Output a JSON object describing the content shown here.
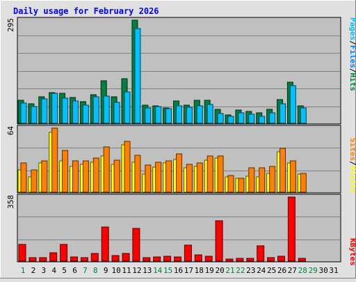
{
  "chart_data": [
    {
      "type": "bar",
      "title": "Daily usage for February 2026",
      "categories": [
        "1",
        "2",
        "3",
        "4",
        "5",
        "6",
        "7",
        "8",
        "9",
        "10",
        "11",
        "12",
        "13",
        "14",
        "15",
        "16",
        "17",
        "18",
        "19",
        "20",
        "21",
        "22",
        "23",
        "24",
        "25",
        "26",
        "27",
        "28",
        "29",
        "30",
        "31"
      ],
      "weekend_days": [
        "1",
        "7",
        "8",
        "14",
        "15",
        "21",
        "22",
        "28",
        "29"
      ],
      "ylabel_parts": [
        "Pages",
        "Files",
        "Hits"
      ],
      "ymax_label": "295",
      "ylim": [
        0,
        295
      ],
      "series": [
        {
          "name": "Hits",
          "color": "#008040",
          "values": [
            65,
            56,
            75,
            87,
            85,
            73,
            61,
            82,
            121,
            76,
            128,
            295,
            51,
            50,
            44,
            63,
            52,
            66,
            65,
            39,
            24,
            37,
            33,
            29,
            40,
            68,
            118,
            49,
            0,
            0,
            0
          ]
        },
        {
          "name": "Files",
          "color": "#00c0ff",
          "values": [
            57,
            47,
            70,
            85,
            72,
            63,
            51,
            76,
            78,
            60,
            90,
            272,
            43,
            47,
            41,
            50,
            45,
            50,
            54,
            27,
            19,
            30,
            26,
            20,
            30,
            55,
            107,
            43,
            0,
            0,
            0
          ]
        },
        {
          "name": "Pages",
          "color": "#00c0ff",
          "values": [
            0,
            0,
            0,
            0,
            0,
            0,
            0,
            0,
            0,
            0,
            0,
            0,
            0,
            0,
            0,
            0,
            0,
            0,
            0,
            0,
            0,
            0,
            0,
            0,
            0,
            0,
            0,
            0,
            0,
            0,
            0
          ]
        }
      ]
    },
    {
      "type": "bar",
      "ylabel_parts": [
        "Sites",
        "Visits"
      ],
      "ymax_label": "64",
      "ylim": [
        0,
        64
      ],
      "series": [
        {
          "name": "Visits",
          "color": "#ffff00",
          "values": [
            22,
            15,
            29,
            60,
            31,
            26,
            28,
            30,
            36,
            28,
            47,
            30,
            18,
            25,
            29,
            33,
            24,
            26,
            32,
            34,
            15,
            14,
            16,
            15,
            19,
            40,
            29,
            18,
            0,
            0,
            0
          ]
        },
        {
          "name": "Sites",
          "color": "#ff8000",
          "values": [
            29,
            22,
            31,
            64,
            42,
            31,
            31,
            34,
            45,
            32,
            51,
            37,
            27,
            30,
            31,
            38,
            28,
            29,
            36,
            36,
            17,
            14,
            24,
            24,
            26,
            44,
            31,
            19,
            0,
            0,
            0
          ]
        }
      ]
    },
    {
      "type": "bar",
      "ylabel_parts": [
        "KBytes"
      ],
      "ymax_label": "358",
      "ylim": [
        0,
        358
      ],
      "series": [
        {
          "name": "KBytes",
          "color": "#ff0000",
          "values": [
            92,
            21,
            21,
            45,
            95,
            22,
            20,
            42,
            190,
            31,
            43,
            182,
            20,
            24,
            26,
            25,
            88,
            36,
            26,
            225,
            12,
            14,
            14,
            84,
            18,
            29,
            358,
            15,
            0,
            0,
            0
          ]
        }
      ]
    }
  ],
  "colors": {
    "title": "#0000ff",
    "weekday_label": "#000000",
    "weekend_label": "#008040",
    "background": "#e0e0e0",
    "plot_bg": "#c0c0c0",
    "grid": "#808080",
    "label_pages": "#00c0ff",
    "label_files": "#0080ff",
    "label_hits": "#008040",
    "label_sites": "#ff8000",
    "label_visits": "#ffff00",
    "label_kbytes": "#ff0000",
    "separator": "#000000"
  }
}
